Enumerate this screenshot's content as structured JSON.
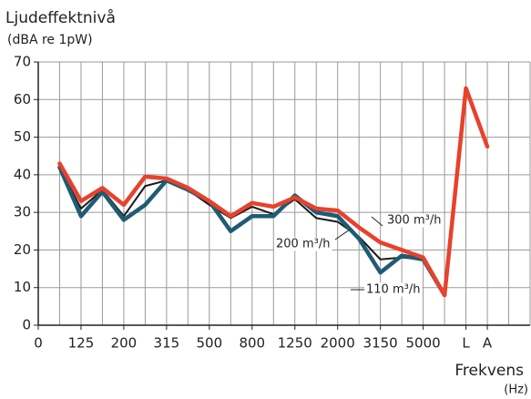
{
  "chart_data": {
    "type": "line",
    "title": "Ljudeffektnivå",
    "subtitle": "(dBA re 1pW)",
    "xlabel": "Frekvens",
    "xunit": "(Hz)",
    "categories": [
      "0",
      null,
      "125",
      null,
      "200",
      null,
      "315",
      null,
      "500",
      null,
      "800",
      null,
      "1250",
      null,
      "2000",
      null,
      "3150",
      null,
      "5000",
      null,
      "L",
      "A"
    ],
    "series": [
      {
        "name": "200 m³/h",
        "color": "#1a1a1a",
        "width": 2,
        "values": [
          null,
          42,
          31,
          36,
          29,
          37,
          38.5,
          36,
          32,
          28.5,
          31.5,
          29.5,
          33.5,
          28.5,
          27.5,
          23.5,
          17.5,
          18,
          17.5,
          8,
          null,
          null
        ]
      },
      {
        "name": "110 m³/h",
        "color": "#1f5b74",
        "width": 4.5,
        "values": [
          null,
          42,
          29,
          35.5,
          28,
          32,
          38.5,
          36,
          33,
          25,
          29,
          29,
          34.5,
          30,
          29,
          23,
          14,
          18.5,
          17.5,
          8,
          null,
          null
        ]
      },
      {
        "name": "300 m³/h",
        "color": "#e8412c",
        "width": 4.5,
        "values": [
          null,
          43,
          33,
          36.5,
          32,
          39.5,
          39,
          36.5,
          33,
          29,
          32.5,
          31.5,
          34,
          31,
          30.5,
          26,
          22,
          20,
          18,
          8,
          63,
          47.5
        ]
      }
    ],
    "ylim": [
      0,
      70
    ],
    "yticks": [
      0,
      10,
      20,
      30,
      40,
      50,
      60,
      70
    ],
    "grid": true
  }
}
